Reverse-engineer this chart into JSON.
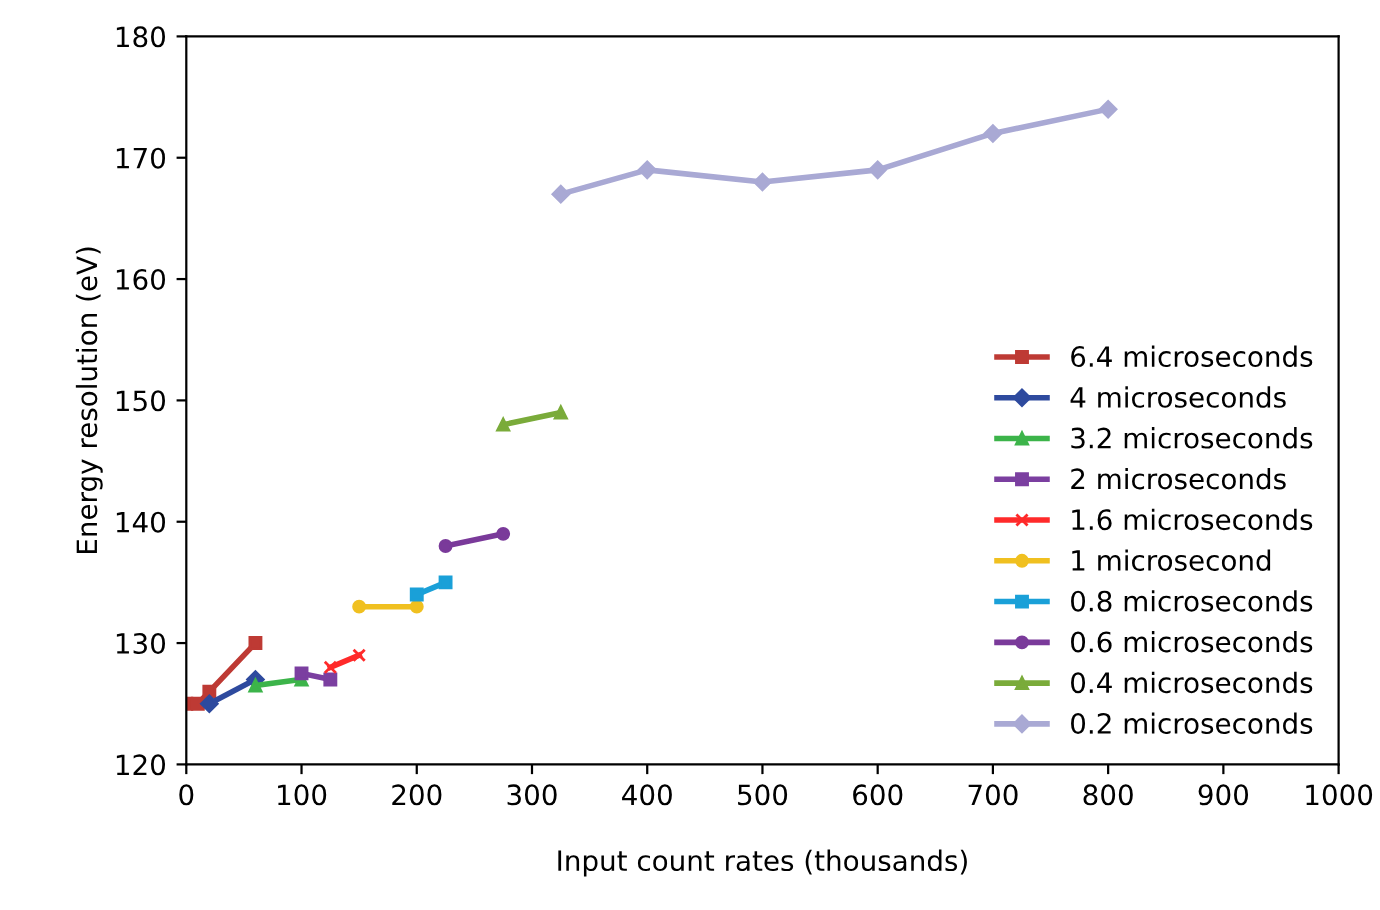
{
  "chart_data": {
    "type": "line",
    "xlabel": "Input count rates (thousands)",
    "ylabel": "Energy resolution (eV)",
    "xlim": [
      0,
      1000
    ],
    "xticks": [
      0,
      100,
      200,
      300,
      400,
      500,
      600,
      700,
      800,
      900,
      1000
    ],
    "ylim": [
      120,
      180
    ],
    "yticks": [
      120,
      130,
      140,
      150,
      160,
      170,
      180
    ],
    "grid": false,
    "legend": "bottom right",
    "series": [
      {
        "name": "6.4 microseconds",
        "color": "#be3a34",
        "marker": "square",
        "x": [
          0,
          10,
          20,
          60
        ],
        "values": [
          125,
          125,
          126,
          130
        ]
      },
      {
        "name": "4 microseconds",
        "color": "#2e4a9e",
        "marker": "diamond",
        "x": [
          20,
          60
        ],
        "values": [
          125,
          127
        ]
      },
      {
        "name": "3.2 microseconds",
        "color": "#3cb44a",
        "marker": "triangle",
        "x": [
          60,
          100
        ],
        "values": [
          126.5,
          127
        ]
      },
      {
        "name": "2 microseconds",
        "color": "#7b3fa0",
        "marker": "square",
        "x": [
          100,
          125
        ],
        "values": [
          127.5,
          127
        ]
      },
      {
        "name": "1.6 microseconds",
        "color": "#ff2a2a",
        "marker": "cross",
        "x": [
          125,
          150
        ],
        "values": [
          128,
          129
        ]
      },
      {
        "name": "1 microsecond",
        "color": "#f0c020",
        "marker": "circle",
        "x": [
          150,
          200
        ],
        "values": [
          133,
          133
        ]
      },
      {
        "name": "0.8 microseconds",
        "color": "#1aa0d8",
        "marker": "square",
        "x": [
          200,
          225
        ],
        "values": [
          134,
          135
        ]
      },
      {
        "name": "0.6 microseconds",
        "color": "#7a3a9a",
        "marker": "circle",
        "x": [
          225,
          275
        ],
        "values": [
          138,
          139
        ]
      },
      {
        "name": "0.4 microseconds",
        "color": "#7aab3a",
        "marker": "triangle",
        "x": [
          275,
          325
        ],
        "values": [
          148,
          149
        ]
      },
      {
        "name": "0.2 microseconds",
        "color": "#a9a9d4",
        "marker": "diamond",
        "x": [
          325,
          400,
          500,
          600,
          700,
          800
        ],
        "values": [
          167,
          169,
          168,
          169,
          172,
          174
        ]
      }
    ]
  }
}
